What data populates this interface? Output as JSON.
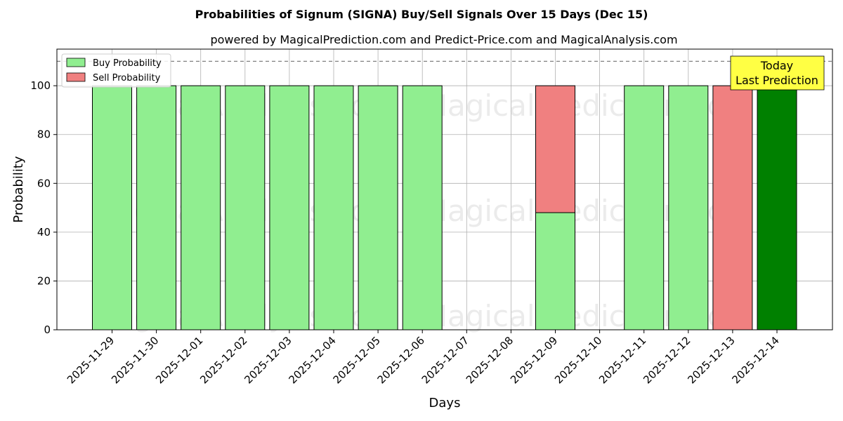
{
  "chart_data": {
    "type": "bar",
    "title": "Probabilities of Signum (SIGNA) Buy/Sell Signals Over 15 Days (Dec 15)",
    "subtitle": "powered by MagicalPrediction.com and Predict-Price.com and MagicalAnalysis.com",
    "xlabel": "Days",
    "ylabel": "Probability",
    "ylim": [
      0,
      115
    ],
    "yticks": [
      0,
      20,
      40,
      60,
      80,
      100
    ],
    "grid": true,
    "legend_position": "top-left",
    "categories": [
      "2025-11-29",
      "2025-11-30",
      "2025-12-01",
      "2025-12-02",
      "2025-12-03",
      "2025-12-04",
      "2025-12-05",
      "2025-12-06",
      "2025-12-07",
      "2025-12-08",
      "2025-12-09",
      "2025-12-10",
      "2025-12-11",
      "2025-12-12",
      "2025-12-13",
      "2025-12-14"
    ],
    "series": [
      {
        "name": "Buy Probability",
        "color": "#90ee90",
        "values": [
          100,
          100,
          100,
          100,
          100,
          100,
          100,
          100,
          0,
          0,
          48,
          0,
          100,
          100,
          0,
          100
        ]
      },
      {
        "name": "Sell Probability",
        "color": "#f08080",
        "values": [
          0,
          0,
          0,
          0,
          0,
          0,
          0,
          0,
          0,
          0,
          52,
          0,
          0,
          0,
          100,
          0
        ]
      }
    ],
    "highlight": {
      "category": "2025-12-14",
      "color": "#008000"
    },
    "reference_line": {
      "y": 110,
      "style": "dashed",
      "color": "#808080"
    },
    "annotation": {
      "lines": [
        "Today",
        "Last Prediction"
      ],
      "background": "#ffff44",
      "anchor_category": "2025-12-14"
    },
    "watermarks": [
      "MagicalAnalysis.com",
      "MagicalPrediction.com"
    ]
  }
}
